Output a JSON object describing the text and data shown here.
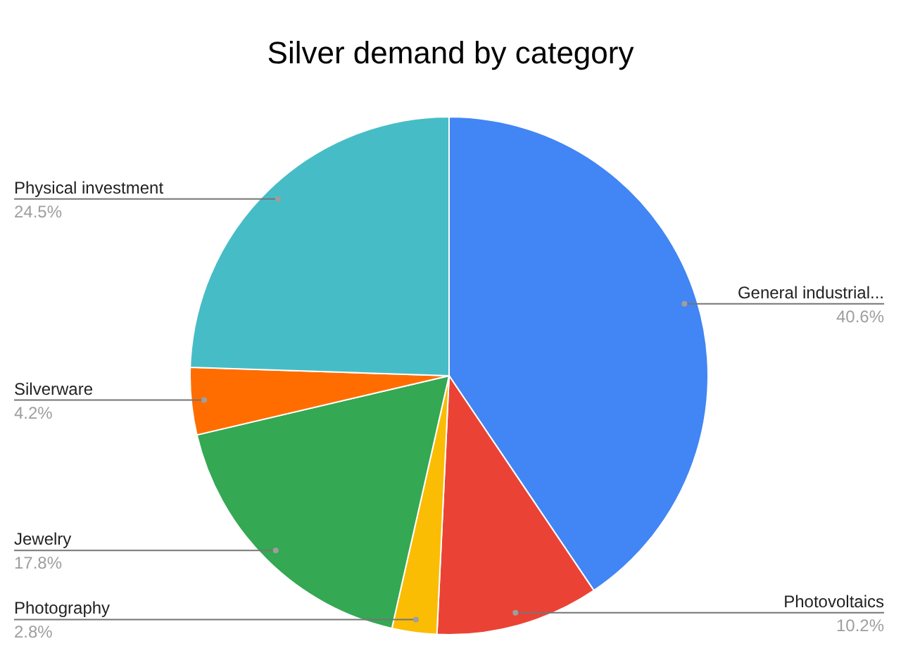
{
  "chart_data": {
    "type": "pie",
    "title": "Silver demand by category",
    "categories": [
      "General industrial...",
      "Photovoltaics",
      "Photography",
      "Jewelry",
      "Silverware",
      "Physical investment"
    ],
    "values": [
      40.6,
      10.2,
      2.8,
      17.8,
      4.2,
      24.5
    ],
    "colors": [
      "#4285f4",
      "#ea4335",
      "#fbbc04",
      "#34a853",
      "#ff6d01",
      "#46bdc6"
    ],
    "value_labels": [
      "40.6%",
      "10.2%",
      "2.8%",
      "17.8%",
      "4.2%",
      "24.5%"
    ]
  }
}
